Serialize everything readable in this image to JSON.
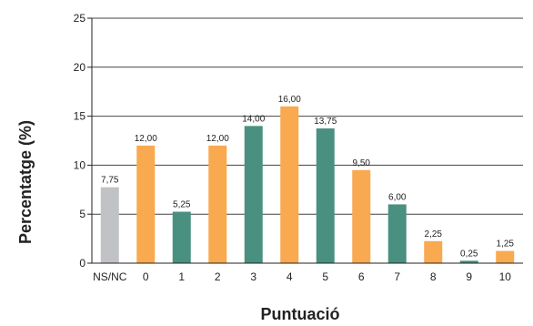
{
  "chart_data": {
    "type": "bar",
    "title": "",
    "xlabel": "Puntuació",
    "ylabel": "Percentatge (%)",
    "ylim": [
      0,
      25
    ],
    "y_ticks": [
      "0",
      "5",
      "10",
      "15",
      "20",
      "25"
    ],
    "categories": [
      "NS/NC",
      "0",
      "1",
      "2",
      "3",
      "4",
      "5",
      "6",
      "7",
      "8",
      "9",
      "10"
    ],
    "values": [
      7.75,
      12.0,
      5.25,
      12.0,
      14.0,
      16.0,
      13.75,
      9.5,
      6.0,
      2.25,
      0.25,
      1.25
    ],
    "value_labels": [
      "7,75",
      "12,00",
      "5,25",
      "12,00",
      "14,00",
      "16,00",
      "13,75",
      "9,50",
      "6,00",
      "2,25",
      "0,25",
      "1,25"
    ],
    "bar_colors": [
      "#c1c2c6",
      "#f9a94f",
      "#4a9080",
      "#f9a94f",
      "#4a9080",
      "#f9a94f",
      "#4a9080",
      "#f9a94f",
      "#4a9080",
      "#f9a94f",
      "#4a9080",
      "#f9a94f"
    ],
    "grid": true,
    "legend": "none"
  }
}
